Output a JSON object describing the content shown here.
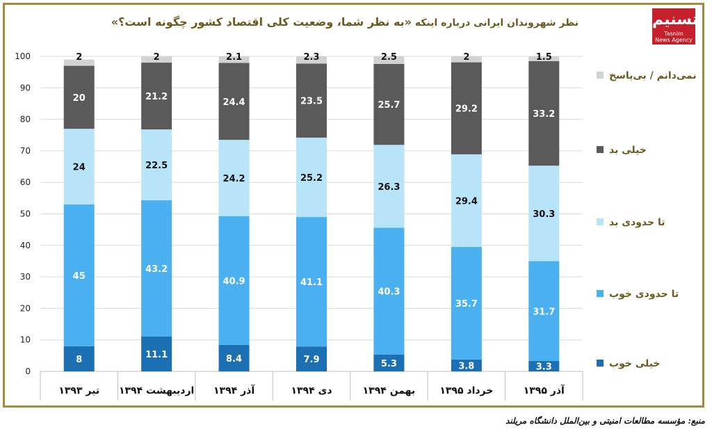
{
  "title_prefix": "نظر شهروندان ایرانی درباره اینکه",
  "title_question": "«به نظر شما، وضعیت کلی اقتصاد کشور  چگونه است؟»",
  "logo": {
    "glyph": "تسنیم",
    "text": "Tasnim",
    "sub": "News Agency"
  },
  "source": "منبع: مؤسسه مطالعات امنیتی و بین‌الملل دانشگاه مریلند",
  "colors": {
    "very_good": "#1b6fb3",
    "somewhat_good": "#4ab0f0",
    "somewhat_bad": "#b8e4fa",
    "very_bad": "#5a5a5a",
    "no_answer": "#d2d2d2",
    "legend_text": "#6b5a1c",
    "frame": "#a18a3e"
  },
  "chart_data": {
    "type": "bar",
    "stacked": true,
    "categories": [
      "تیر ۱۳۹۳",
      "اردیبهشت ۱۳۹۴",
      "آذر ۱۳۹۴",
      "دی ۱۳۹۴",
      "بهمن ۱۳۹۴",
      "خرداد ۱۳۹۵",
      "آذر ۱۳۹۵"
    ],
    "ylim": [
      0,
      100
    ],
    "yticks": [
      0,
      10,
      20,
      30,
      40,
      50,
      60,
      70,
      80,
      90,
      100
    ],
    "grid": true,
    "legend_position": "right",
    "series": [
      {
        "key": "very_good",
        "name": "خیلی خوب",
        "values": [
          8,
          11.1,
          8.4,
          7.9,
          5.3,
          3.8,
          3.3
        ]
      },
      {
        "key": "somewhat_good",
        "name": "تا حدودی خوب",
        "values": [
          45,
          43.2,
          40.9,
          41.1,
          40.3,
          35.7,
          31.7
        ]
      },
      {
        "key": "somewhat_bad",
        "name": "تا حدودی بد",
        "values": [
          24,
          22.5,
          24.2,
          25.2,
          26.3,
          29.4,
          30.3
        ]
      },
      {
        "key": "very_bad",
        "name": "خیلی بد",
        "values": [
          20,
          21.2,
          24.4,
          23.5,
          25.7,
          29.2,
          33.2
        ]
      },
      {
        "key": "no_answer",
        "name": "نمی‌دانم / بی‌پاسخ",
        "values": [
          2,
          2,
          2.1,
          2.3,
          2.5,
          2,
          1.5
        ]
      }
    ]
  }
}
